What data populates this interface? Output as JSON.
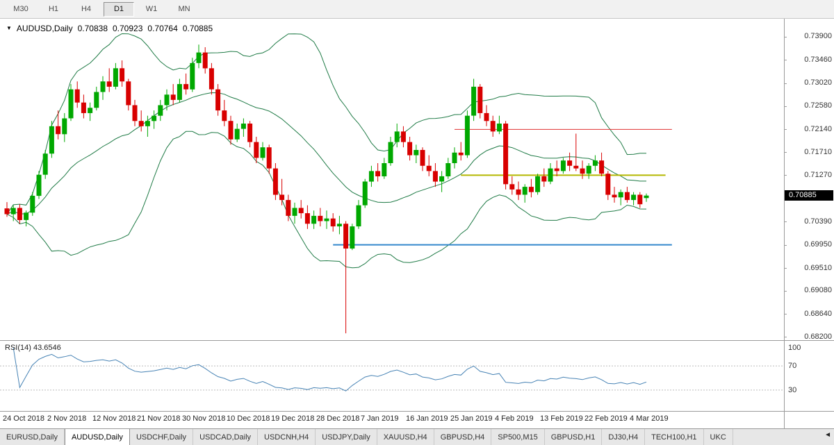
{
  "toolbar": {
    "timeframes": [
      {
        "label": "M30",
        "active": false
      },
      {
        "label": "H1",
        "active": false
      },
      {
        "label": "H4",
        "active": false
      },
      {
        "label": "D1",
        "active": true
      },
      {
        "label": "W1",
        "active": false
      },
      {
        "label": "MN",
        "active": false
      }
    ]
  },
  "chart": {
    "collapse_icon": "▼",
    "symbol_label": "AUDUSD,Daily",
    "ohlc": {
      "open": "0.70838",
      "high": "0.70923",
      "low": "0.70764",
      "close": "0.70885"
    },
    "current_price": "0.70885",
    "badge_color": "#000000"
  },
  "rsi": {
    "label": "RSI(14) 43.6546"
  },
  "tabs": {
    "scroll_left_icon": "◄",
    "items": [
      {
        "label": "EURUSD,Daily",
        "active": false
      },
      {
        "label": "AUDUSD,Daily",
        "active": true
      },
      {
        "label": "USDCHF,Daily",
        "active": false
      },
      {
        "label": "USDCAD,Daily",
        "active": false
      },
      {
        "label": "USDCNH,H4",
        "active": false
      },
      {
        "label": "USDJPY,Daily",
        "active": false
      },
      {
        "label": "XAUUSD,H4",
        "active": false
      },
      {
        "label": "GBPUSD,H4",
        "active": false
      },
      {
        "label": "SP500,M15",
        "active": false
      },
      {
        "label": "GBPUSD,H1",
        "active": false
      },
      {
        "label": "DJ30,H4",
        "active": false
      },
      {
        "label": "TECH100,H1",
        "active": false
      },
      {
        "label": "UKC",
        "active": false
      }
    ]
  },
  "chart_data": {
    "type": "candlestick",
    "symbol": "AUDUSD",
    "timeframe": "Daily",
    "current_price": 0.70885,
    "price_axis": {
      "top": 0.7424,
      "bottom": 0.6814,
      "labels": [
        "0.73900",
        "0.73460",
        "0.73020",
        "0.72580",
        "0.72140",
        "0.71710",
        "0.71270",
        "0.70830",
        "0.70390",
        "0.69950",
        "0.69510",
        "0.69080",
        "0.68640",
        "0.68200"
      ]
    },
    "colors": {
      "up": "#00A800",
      "down": "#D80000",
      "bollinger": "#1E7A45",
      "hline_red": "#E03030",
      "hline_yellow": "#B4B800",
      "hline_blue": "#3388CC"
    },
    "indicators": {
      "bollinger": {
        "period": 20,
        "deviation": 2
      },
      "rsi": {
        "period": 14,
        "value": 43.6546,
        "color": "#4682B4",
        "range": [
          0,
          100
        ],
        "levels": [
          70,
          30
        ],
        "axis_labels": [
          {
            "text": "100",
            "value": 100
          },
          {
            "text": "70",
            "value": 70
          },
          {
            "text": "30",
            "value": 30
          }
        ]
      }
    },
    "objects": [
      {
        "type": "hline",
        "price": 0.7214,
        "from_index": 70,
        "to_index": 104,
        "color_key": "hline_red",
        "width": 1
      },
      {
        "type": "hline",
        "price": 0.7127,
        "from_index": 71,
        "to_index": 103,
        "color_key": "hline_yellow",
        "width": 2
      },
      {
        "type": "hline",
        "price": 0.6995,
        "from_index": 51,
        "to_index": 104,
        "color_key": "hline_blue",
        "width": 2
      }
    ],
    "time_axis": [
      {
        "index": 0,
        "label": "24 Oct 2018"
      },
      {
        "index": 7,
        "label": "2 Nov 2018"
      },
      {
        "index": 14,
        "label": "12 Nov 2018"
      },
      {
        "index": 21,
        "label": "21 Nov 2018"
      },
      {
        "index": 28,
        "label": "30 Nov 2018"
      },
      {
        "index": 35,
        "label": "10 Dec 2018"
      },
      {
        "index": 42,
        "label": "19 Dec 2018"
      },
      {
        "index": 49,
        "label": "28 Dec 2018"
      },
      {
        "index": 56,
        "label": "7 Jan 2019"
      },
      {
        "index": 63,
        "label": "16 Jan 2019"
      },
      {
        "index": 70,
        "label": "25 Jan 2019"
      },
      {
        "index": 77,
        "label": "4 Feb 2019"
      },
      {
        "index": 84,
        "label": "13 Feb 2019"
      },
      {
        "index": 91,
        "label": "22 Feb 2019"
      },
      {
        "index": 98,
        "label": "4 Mar 2019"
      }
    ],
    "candles": [
      [
        0.7064,
        0.7076,
        0.7048,
        0.7053
      ],
      [
        0.7053,
        0.707,
        0.704,
        0.7065
      ],
      [
        0.7065,
        0.7072,
        0.7035,
        0.7042
      ],
      [
        0.7042,
        0.706,
        0.703,
        0.7056
      ],
      [
        0.7056,
        0.7095,
        0.705,
        0.7088
      ],
      [
        0.7088,
        0.7135,
        0.7082,
        0.7128
      ],
      [
        0.7128,
        0.7175,
        0.712,
        0.7168
      ],
      [
        0.7168,
        0.723,
        0.716,
        0.722
      ],
      [
        0.722,
        0.725,
        0.7195,
        0.7205
      ],
      [
        0.7205,
        0.7245,
        0.719,
        0.7235
      ],
      [
        0.7235,
        0.73,
        0.723,
        0.729
      ],
      [
        0.729,
        0.7305,
        0.7255,
        0.7265
      ],
      [
        0.7265,
        0.728,
        0.7235,
        0.7245
      ],
      [
        0.7245,
        0.7265,
        0.723,
        0.7255
      ],
      [
        0.7255,
        0.7295,
        0.725,
        0.7285
      ],
      [
        0.7285,
        0.7315,
        0.727,
        0.7305
      ],
      [
        0.7305,
        0.733,
        0.7285,
        0.7295
      ],
      [
        0.7295,
        0.734,
        0.729,
        0.733
      ],
      [
        0.733,
        0.7345,
        0.7295,
        0.7305
      ],
      [
        0.7305,
        0.731,
        0.725,
        0.726
      ],
      [
        0.726,
        0.727,
        0.722,
        0.723
      ],
      [
        0.723,
        0.725,
        0.721,
        0.722
      ],
      [
        0.722,
        0.724,
        0.72,
        0.723
      ],
      [
        0.723,
        0.725,
        0.7215,
        0.724
      ],
      [
        0.724,
        0.727,
        0.723,
        0.726
      ],
      [
        0.726,
        0.729,
        0.725,
        0.728
      ],
      [
        0.728,
        0.73,
        0.726,
        0.727
      ],
      [
        0.727,
        0.731,
        0.7265,
        0.73
      ],
      [
        0.73,
        0.732,
        0.728,
        0.729
      ],
      [
        0.729,
        0.735,
        0.7285,
        0.734
      ],
      [
        0.734,
        0.7375,
        0.733,
        0.736
      ],
      [
        0.736,
        0.737,
        0.732,
        0.733
      ],
      [
        0.733,
        0.734,
        0.728,
        0.729
      ],
      [
        0.729,
        0.73,
        0.724,
        0.725
      ],
      [
        0.725,
        0.727,
        0.722,
        0.723
      ],
      [
        0.723,
        0.724,
        0.7185,
        0.7195
      ],
      [
        0.7195,
        0.7225,
        0.719,
        0.7215
      ],
      [
        0.7215,
        0.7235,
        0.72,
        0.7225
      ],
      [
        0.7225,
        0.723,
        0.718,
        0.719
      ],
      [
        0.719,
        0.72,
        0.715,
        0.716
      ],
      [
        0.716,
        0.719,
        0.7155,
        0.718
      ],
      [
        0.718,
        0.7185,
        0.713,
        0.714
      ],
      [
        0.714,
        0.715,
        0.708,
        0.709
      ],
      [
        0.709,
        0.712,
        0.707,
        0.708
      ],
      [
        0.708,
        0.709,
        0.704,
        0.705
      ],
      [
        0.705,
        0.7075,
        0.7035,
        0.7065
      ],
      [
        0.7065,
        0.708,
        0.7045,
        0.7055
      ],
      [
        0.7055,
        0.707,
        0.7025,
        0.7035
      ],
      [
        0.7035,
        0.706,
        0.7025,
        0.705
      ],
      [
        0.705,
        0.7065,
        0.703,
        0.704
      ],
      [
        0.704,
        0.706,
        0.7025,
        0.7045
      ],
      [
        0.7045,
        0.7055,
        0.702,
        0.703
      ],
      [
        0.703,
        0.705,
        0.7015,
        0.7035
      ],
      [
        0.7035,
        0.704,
        0.6827,
        0.6988
      ],
      [
        0.6988,
        0.7035,
        0.6985,
        0.703
      ],
      [
        0.703,
        0.708,
        0.7025,
        0.707
      ],
      [
        0.707,
        0.712,
        0.7065,
        0.7115
      ],
      [
        0.7115,
        0.7145,
        0.7105,
        0.7135
      ],
      [
        0.7135,
        0.715,
        0.7115,
        0.7125
      ],
      [
        0.7125,
        0.716,
        0.712,
        0.715
      ],
      [
        0.715,
        0.72,
        0.7145,
        0.719
      ],
      [
        0.719,
        0.7225,
        0.718,
        0.721
      ],
      [
        0.721,
        0.722,
        0.718,
        0.719
      ],
      [
        0.719,
        0.72,
        0.7155,
        0.7165
      ],
      [
        0.7165,
        0.7185,
        0.715,
        0.7175
      ],
      [
        0.7175,
        0.718,
        0.7135,
        0.7145
      ],
      [
        0.7145,
        0.7165,
        0.7125,
        0.7135
      ],
      [
        0.7135,
        0.715,
        0.7105,
        0.7115
      ],
      [
        0.7115,
        0.7135,
        0.7095,
        0.7125
      ],
      [
        0.7125,
        0.716,
        0.712,
        0.715
      ],
      [
        0.715,
        0.718,
        0.714,
        0.717
      ],
      [
        0.717,
        0.719,
        0.7155,
        0.7165
      ],
      [
        0.7165,
        0.725,
        0.716,
        0.724
      ],
      [
        0.724,
        0.731,
        0.723,
        0.7295
      ],
      [
        0.7295,
        0.73,
        0.7235,
        0.7245
      ],
      [
        0.7245,
        0.726,
        0.722,
        0.723
      ],
      [
        0.723,
        0.724,
        0.72,
        0.721
      ],
      [
        0.721,
        0.724,
        0.7205,
        0.7225
      ],
      [
        0.7225,
        0.723,
        0.71,
        0.711
      ],
      [
        0.711,
        0.7125,
        0.709,
        0.71
      ],
      [
        0.71,
        0.7115,
        0.708,
        0.709
      ],
      [
        0.709,
        0.711,
        0.7075,
        0.7105
      ],
      [
        0.7105,
        0.712,
        0.7085,
        0.7095
      ],
      [
        0.7095,
        0.713,
        0.709,
        0.7125
      ],
      [
        0.7125,
        0.714,
        0.7105,
        0.7115
      ],
      [
        0.7115,
        0.715,
        0.711,
        0.714
      ],
      [
        0.714,
        0.7155,
        0.7125,
        0.7135
      ],
      [
        0.7135,
        0.716,
        0.713,
        0.7155
      ],
      [
        0.7155,
        0.717,
        0.7135,
        0.7145
      ],
      [
        0.7145,
        0.7206,
        0.7135,
        0.714
      ],
      [
        0.714,
        0.7155,
        0.712,
        0.713
      ],
      [
        0.713,
        0.715,
        0.712,
        0.7145
      ],
      [
        0.7145,
        0.7165,
        0.7135,
        0.7155
      ],
      [
        0.7155,
        0.717,
        0.7125,
        0.713
      ],
      [
        0.713,
        0.7135,
        0.708,
        0.709
      ],
      [
        0.709,
        0.7105,
        0.7075,
        0.7085
      ],
      [
        0.7085,
        0.71,
        0.707,
        0.7095
      ],
      [
        0.7095,
        0.7105,
        0.7075,
        0.708
      ],
      [
        0.708,
        0.7095,
        0.707,
        0.709
      ],
      [
        0.709,
        0.7095,
        0.7065,
        0.7072
      ],
      [
        0.70838,
        0.70923,
        0.70764,
        0.70885
      ]
    ]
  }
}
